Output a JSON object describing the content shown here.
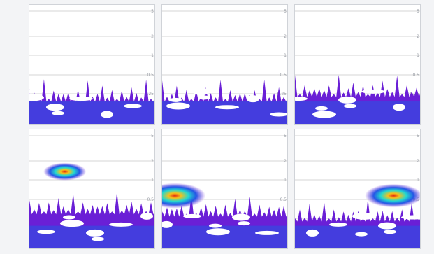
{
  "chart_data": {
    "type": "heatmap",
    "title": "",
    "xlabel": "",
    "ylabel": "",
    "panels": [
      {
        "name": "",
        "peaks": [],
        "level": 0.3
      },
      {
        "name": "",
        "peaks": [],
        "level": 0.3
      },
      {
        "name": "",
        "peaks": [],
        "level": 0.34
      },
      {
        "name": "",
        "peaks": [
          {
            "x": 0.28,
            "y": 0.35,
            "value": 0.55
          }
        ],
        "level": 0.4
      },
      {
        "name": "",
        "peaks": [
          {
            "x": 0.1,
            "y": 0.55,
            "value": 1.0
          }
        ],
        "level": 0.38
      },
      {
        "name": "",
        "peaks": [
          {
            "x": 0.78,
            "y": 0.55,
            "value": 0.9
          }
        ],
        "level": 0.34
      }
    ],
    "y_tick_labels": [
      "5",
      "2",
      "1",
      "0.5",
      "0.25"
    ],
    "colors": {
      "background": "#ffffff",
      "low": "#6a1fd6",
      "mid": "#2455e6",
      "high": "#22d8d0",
      "peak": "#f7c11a",
      "core": "#e22a10",
      "gridline": "#c8c8c8"
    },
    "grid": true
  }
}
